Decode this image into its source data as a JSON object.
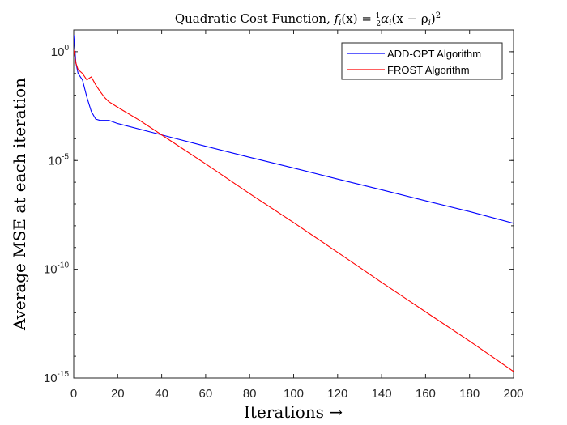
{
  "chart_data": {
    "type": "line",
    "title": {
      "prefix": "Quadratic Cost Function, ",
      "equation_lhs": "f",
      "equation_lhs_sub": "i",
      "equation_lhs_arg": "(x) = ",
      "equation_frac_num": "1",
      "equation_frac_den": "2",
      "equation_rhs_a": "α",
      "equation_rhs_a_sub": "i",
      "equation_rhs_b": "(x − ρ",
      "equation_rhs_b_sub": "i",
      "equation_rhs_c": ")",
      "equation_rhs_sup": "2"
    },
    "xlabel": "Iterations →",
    "ylabel": "Average MSE at each iteration",
    "xlim": [
      0,
      200
    ],
    "ylim": [
      1e-15,
      10
    ],
    "yscale": "log",
    "x_ticks": [
      0,
      20,
      40,
      60,
      80,
      100,
      120,
      140,
      160,
      180,
      200
    ],
    "y_ticks": [
      {
        "value": 1,
        "base": "10",
        "exp": "0"
      },
      {
        "value": 1e-05,
        "base": "10",
        "exp": "-5"
      },
      {
        "value": 1e-10,
        "base": "10",
        "exp": "-10"
      },
      {
        "value": 1e-15,
        "base": "10",
        "exp": "-15"
      }
    ],
    "grid": false,
    "legend_position": "top-right",
    "series": [
      {
        "name": "ADD-OPT Algorithm",
        "color": "#0000ff",
        "points": [
          [
            0,
            6
          ],
          [
            1,
            0.3
          ],
          [
            2,
            0.1
          ],
          [
            4,
            0.05
          ],
          [
            6,
            0.008
          ],
          [
            8,
            0.0018
          ],
          [
            10,
            0.0008
          ],
          [
            12,
            0.0007
          ],
          [
            16,
            0.0007
          ],
          [
            20,
            0.0005
          ],
          [
            40,
            0.00015
          ],
          [
            60,
            4.5e-05
          ],
          [
            80,
            1.4e-05
          ],
          [
            100,
            4.5e-06
          ],
          [
            120,
            1.4e-06
          ],
          [
            140,
            4.5e-07
          ],
          [
            160,
            1.4e-07
          ],
          [
            180,
            4.5e-08
          ],
          [
            200,
            1.3e-08
          ]
        ]
      },
      {
        "name": "FROST Algorithm",
        "color": "#ff0000",
        "points": [
          [
            0,
            1.2
          ],
          [
            1,
            0.3
          ],
          [
            2,
            0.15
          ],
          [
            4,
            0.1
          ],
          [
            6,
            0.05
          ],
          [
            7,
            0.06
          ],
          [
            8,
            0.07
          ],
          [
            10,
            0.03
          ],
          [
            12,
            0.015
          ],
          [
            14,
            0.008
          ],
          [
            16,
            0.005
          ],
          [
            20,
            0.0028
          ],
          [
            30,
            0.0007
          ],
          [
            40,
            0.00015
          ],
          [
            60,
            7e-06
          ],
          [
            80,
            3e-07
          ],
          [
            100,
            1.4e-08
          ],
          [
            120,
            6e-10
          ],
          [
            140,
            2.5e-11
          ],
          [
            160,
            1.1e-12
          ],
          [
            180,
            5e-14
          ],
          [
            200,
            2e-15
          ]
        ]
      }
    ]
  }
}
